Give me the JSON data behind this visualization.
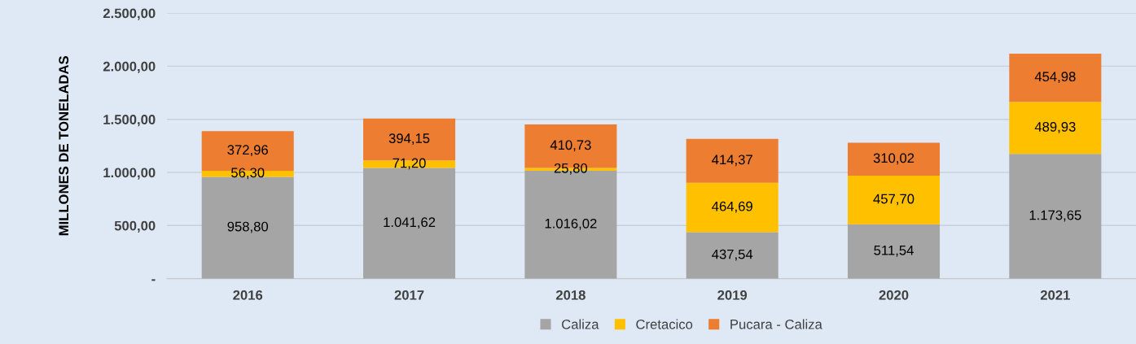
{
  "chart_data": {
    "type": "bar",
    "stacked": true,
    "ylabel": "MILLONES DE TONELADAS",
    "categories": [
      "2016",
      "2017",
      "2018",
      "2019",
      "2020",
      "2021"
    ],
    "series": [
      {
        "name": "Caliza",
        "color": "#a5a5a5",
        "values": [
          958.8,
          1041.62,
          1016.02,
          437.54,
          511.54,
          1173.65
        ],
        "value_labels": [
          "958,80",
          "1.041,62",
          "1.016,02",
          "437,54",
          "511,54",
          "1.173,65"
        ]
      },
      {
        "name": "Cretacico",
        "color": "#ffc000",
        "values": [
          56.3,
          71.2,
          25.8,
          464.69,
          457.7,
          489.93
        ],
        "value_labels": [
          "56,30",
          "71,20",
          "25,80",
          "464,69",
          "457,70",
          "489,93"
        ]
      },
      {
        "name": "Pucara - Caliza",
        "color": "#ed7d31",
        "values": [
          372.96,
          394.15,
          410.73,
          414.37,
          310.02,
          454.98
        ],
        "value_labels": [
          "372,96",
          "394,15",
          "410,73",
          "414,37",
          "310,02",
          "454,98"
        ]
      }
    ],
    "ylim": [
      0,
      2500
    ],
    "yticks": [
      {
        "value": 0,
        "label": "-"
      },
      {
        "value": 500,
        "label": "500,00"
      },
      {
        "value": 1000,
        "label": "1.000,00"
      },
      {
        "value": 1500,
        "label": "1.500,00"
      },
      {
        "value": 2000,
        "label": "2.000,00"
      },
      {
        "value": 2500,
        "label": "2.500,00"
      }
    ],
    "grid": "y",
    "legend": "bottom"
  }
}
